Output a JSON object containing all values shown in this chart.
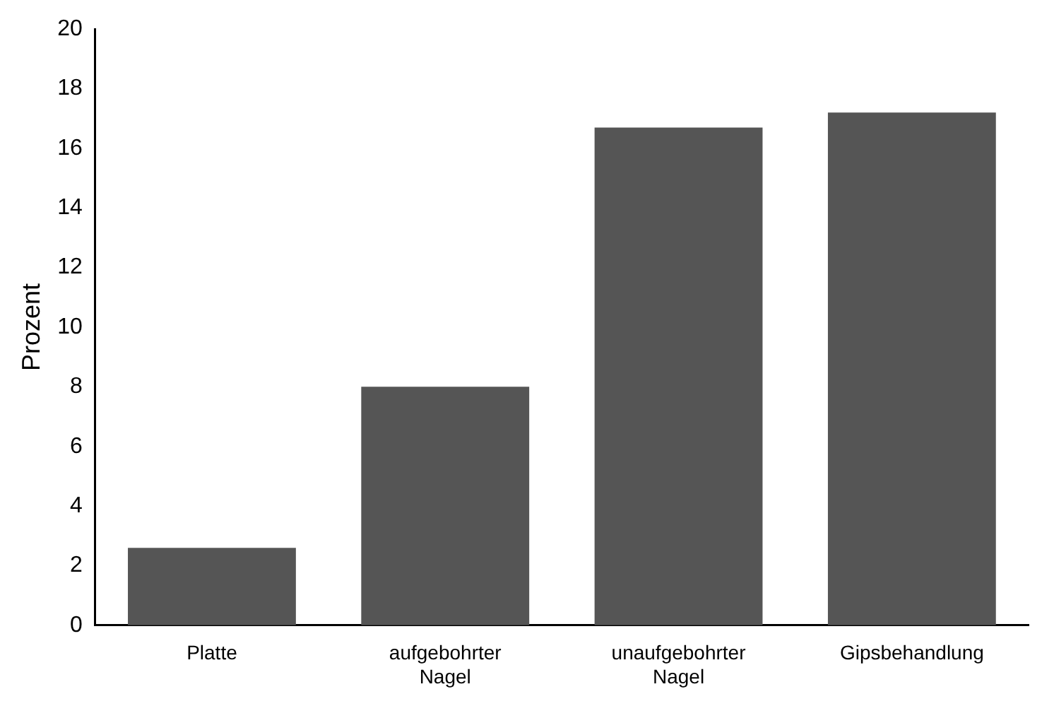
{
  "chart_data": {
    "type": "bar",
    "ylabel": "Prozent",
    "categories": [
      "Platte",
      "aufgebohrter Nagel",
      "unaufgebohrter Nagel",
      "Gipsbehandlung"
    ],
    "values": [
      2.6,
      8.0,
      16.7,
      17.2
    ],
    "color": "#555555",
    "ylim": [
      0,
      20
    ],
    "yticks": [
      0,
      2,
      4,
      6,
      8,
      10,
      12,
      14,
      16,
      18,
      20
    ],
    "grid": false,
    "legend": false
  }
}
